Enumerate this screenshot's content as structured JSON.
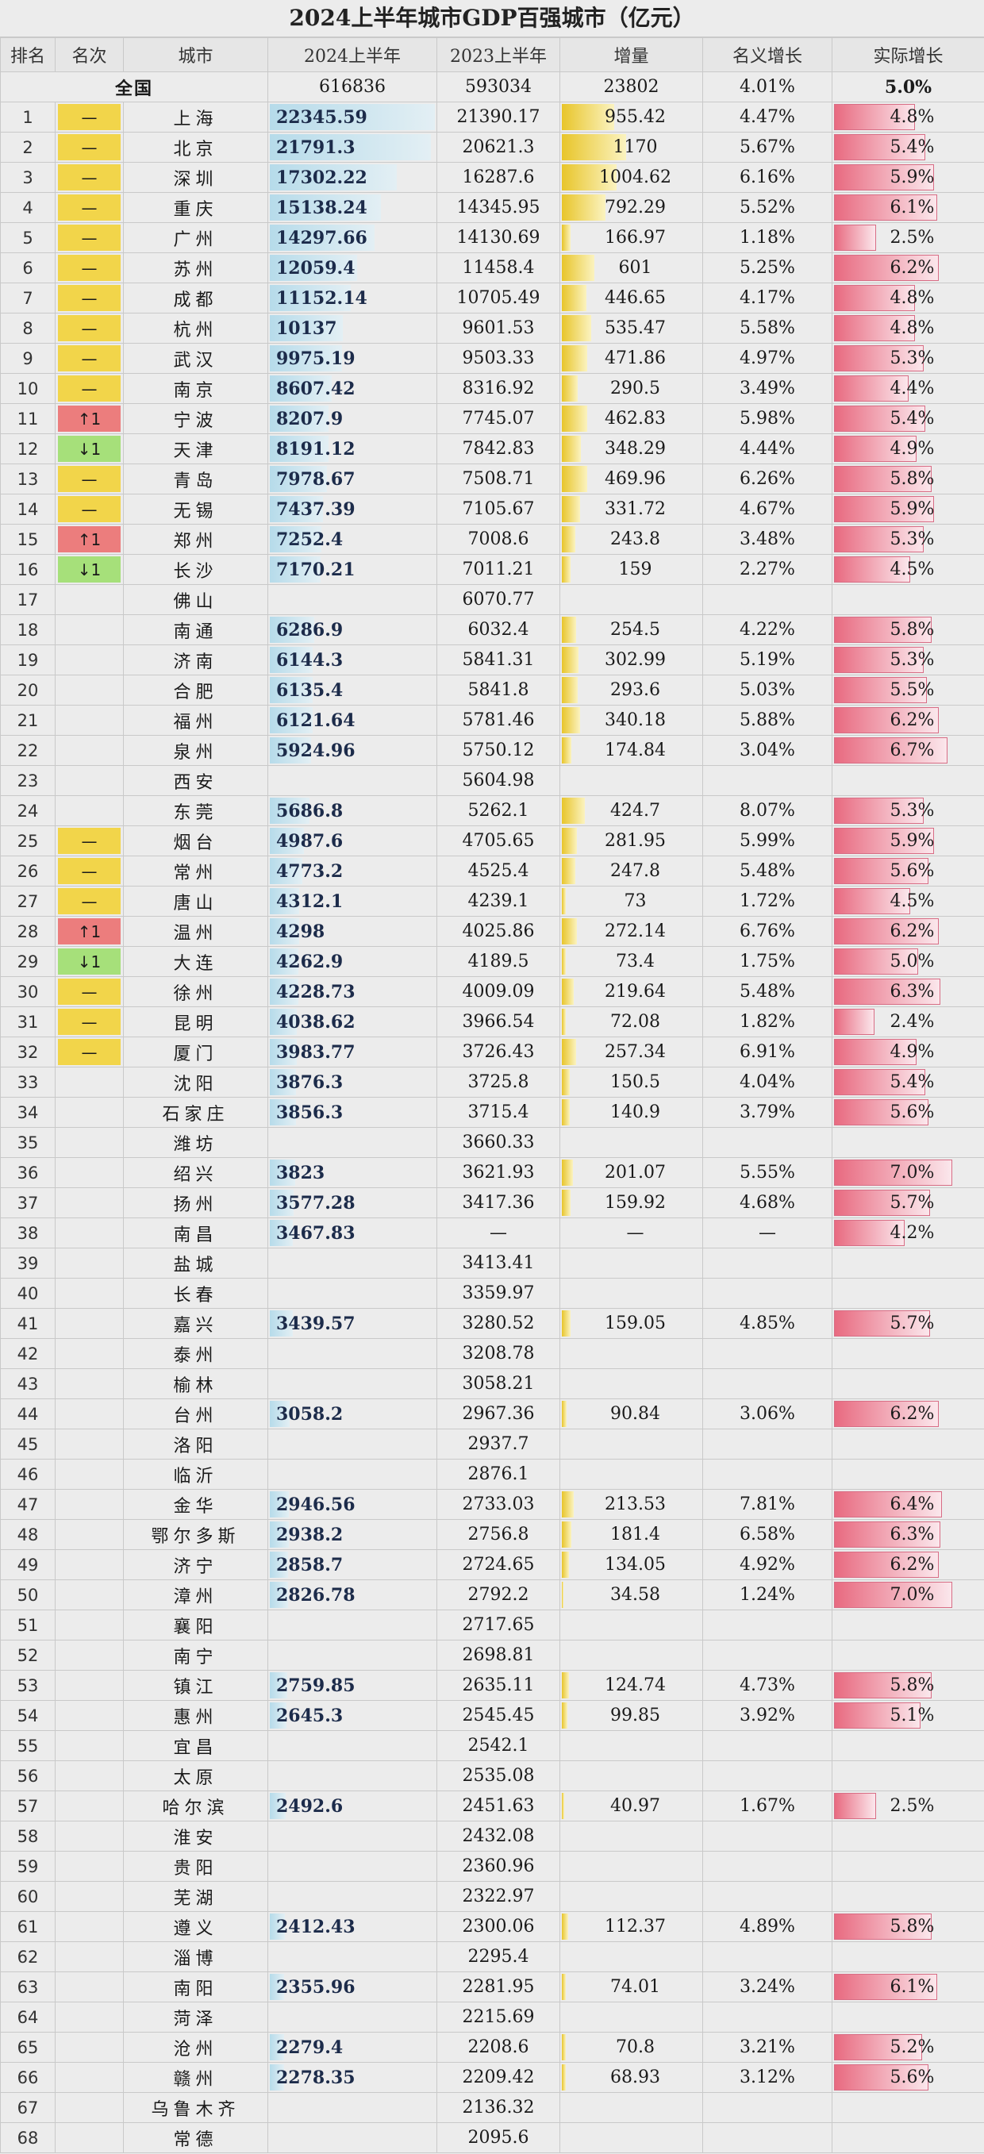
{
  "title": "2024上半年城市GDP百强城市（亿元）",
  "columns": [
    "排名",
    "名次",
    "城市",
    "2024上半年",
    "2023上半年",
    "增量",
    "名义增长",
    "实际增长"
  ],
  "national": {
    "label": "全国",
    "v2024": "616836",
    "v2023": "593034",
    "inc": "23802",
    "nominal": "4.01%",
    "real": "5.0%"
  },
  "scale": {
    "max2024": 22345.59,
    "maxInc": 1170,
    "maxReal": 7.0
  },
  "rows": [
    {
      "rank": "1",
      "change": "—",
      "ctype": "same",
      "city": "上海",
      "v2024": "22345.59",
      "v2023": "21390.17",
      "inc": "955.42",
      "nominal": "4.47%",
      "real": "4.8%"
    },
    {
      "rank": "2",
      "change": "—",
      "ctype": "same",
      "city": "北京",
      "v2024": "21791.3",
      "v2023": "20621.3",
      "inc": "1170",
      "nominal": "5.67%",
      "real": "5.4%"
    },
    {
      "rank": "3",
      "change": "—",
      "ctype": "same",
      "city": "深圳",
      "v2024": "17302.22",
      "v2023": "16287.6",
      "inc": "1004.62",
      "nominal": "6.16%",
      "real": "5.9%"
    },
    {
      "rank": "4",
      "change": "—",
      "ctype": "same",
      "city": "重庆",
      "v2024": "15138.24",
      "v2023": "14345.95",
      "inc": "792.29",
      "nominal": "5.52%",
      "real": "6.1%"
    },
    {
      "rank": "5",
      "change": "—",
      "ctype": "same",
      "city": "广州",
      "v2024": "14297.66",
      "v2023": "14130.69",
      "inc": "166.97",
      "nominal": "1.18%",
      "real": "2.5%"
    },
    {
      "rank": "6",
      "change": "—",
      "ctype": "same",
      "city": "苏州",
      "v2024": "12059.4",
      "v2023": "11458.4",
      "inc": "601",
      "nominal": "5.25%",
      "real": "6.2%"
    },
    {
      "rank": "7",
      "change": "—",
      "ctype": "same",
      "city": "成都",
      "v2024": "11152.14",
      "v2023": "10705.49",
      "inc": "446.65",
      "nominal": "4.17%",
      "real": "4.8%"
    },
    {
      "rank": "8",
      "change": "—",
      "ctype": "same",
      "city": "杭州",
      "v2024": "10137",
      "v2023": "9601.53",
      "inc": "535.47",
      "nominal": "5.58%",
      "real": "4.8%"
    },
    {
      "rank": "9",
      "change": "—",
      "ctype": "same",
      "city": "武汉",
      "v2024": "9975.19",
      "v2023": "9503.33",
      "inc": "471.86",
      "nominal": "4.97%",
      "real": "5.3%"
    },
    {
      "rank": "10",
      "change": "—",
      "ctype": "same",
      "city": "南京",
      "v2024": "8607.42",
      "v2023": "8316.92",
      "inc": "290.5",
      "nominal": "3.49%",
      "real": "4.4%"
    },
    {
      "rank": "11",
      "change": "↑1",
      "ctype": "up",
      "city": "宁波",
      "v2024": "8207.9",
      "v2023": "7745.07",
      "inc": "462.83",
      "nominal": "5.98%",
      "real": "5.4%"
    },
    {
      "rank": "12",
      "change": "↓1",
      "ctype": "down",
      "city": "天津",
      "v2024": "8191.12",
      "v2023": "7842.83",
      "inc": "348.29",
      "nominal": "4.44%",
      "real": "4.9%"
    },
    {
      "rank": "13",
      "change": "—",
      "ctype": "same",
      "city": "青岛",
      "v2024": "7978.67",
      "v2023": "7508.71",
      "inc": "469.96",
      "nominal": "6.26%",
      "real": "5.8%"
    },
    {
      "rank": "14",
      "change": "—",
      "ctype": "same",
      "city": "无锡",
      "v2024": "7437.39",
      "v2023": "7105.67",
      "inc": "331.72",
      "nominal": "4.67%",
      "real": "5.9%"
    },
    {
      "rank": "15",
      "change": "↑1",
      "ctype": "up",
      "city": "郑州",
      "v2024": "7252.4",
      "v2023": "7008.6",
      "inc": "243.8",
      "nominal": "3.48%",
      "real": "5.3%"
    },
    {
      "rank": "16",
      "change": "↓1",
      "ctype": "down",
      "city": "长沙",
      "v2024": "7170.21",
      "v2023": "7011.21",
      "inc": "159",
      "nominal": "2.27%",
      "real": "4.5%"
    },
    {
      "rank": "17",
      "change": "",
      "ctype": "",
      "city": "佛山",
      "v2024": "",
      "v2023": "6070.77",
      "inc": "",
      "nominal": "",
      "real": ""
    },
    {
      "rank": "18",
      "change": "",
      "ctype": "",
      "city": "南通",
      "v2024": "6286.9",
      "v2023": "6032.4",
      "inc": "254.5",
      "nominal": "4.22%",
      "real": "5.8%"
    },
    {
      "rank": "19",
      "change": "",
      "ctype": "",
      "city": "济南",
      "v2024": "6144.3",
      "v2023": "5841.31",
      "inc": "302.99",
      "nominal": "5.19%",
      "real": "5.3%"
    },
    {
      "rank": "20",
      "change": "",
      "ctype": "",
      "city": "合肥",
      "v2024": "6135.4",
      "v2023": "5841.8",
      "inc": "293.6",
      "nominal": "5.03%",
      "real": "5.5%"
    },
    {
      "rank": "21",
      "change": "",
      "ctype": "",
      "city": "福州",
      "v2024": "6121.64",
      "v2023": "5781.46",
      "inc": "340.18",
      "nominal": "5.88%",
      "real": "6.2%"
    },
    {
      "rank": "22",
      "change": "",
      "ctype": "",
      "city": "泉州",
      "v2024": "5924.96",
      "v2023": "5750.12",
      "inc": "174.84",
      "nominal": "3.04%",
      "real": "6.7%"
    },
    {
      "rank": "23",
      "change": "",
      "ctype": "",
      "city": "西安",
      "v2024": "",
      "v2023": "5604.98",
      "inc": "",
      "nominal": "",
      "real": ""
    },
    {
      "rank": "24",
      "change": "",
      "ctype": "",
      "city": "东莞",
      "v2024": "5686.8",
      "v2023": "5262.1",
      "inc": "424.7",
      "nominal": "8.07%",
      "real": "5.3%"
    },
    {
      "rank": "25",
      "change": "—",
      "ctype": "same",
      "city": "烟台",
      "v2024": "4987.6",
      "v2023": "4705.65",
      "inc": "281.95",
      "nominal": "5.99%",
      "real": "5.9%"
    },
    {
      "rank": "26",
      "change": "—",
      "ctype": "same",
      "city": "常州",
      "v2024": "4773.2",
      "v2023": "4525.4",
      "inc": "247.8",
      "nominal": "5.48%",
      "real": "5.6%"
    },
    {
      "rank": "27",
      "change": "—",
      "ctype": "same",
      "city": "唐山",
      "v2024": "4312.1",
      "v2023": "4239.1",
      "inc": "73",
      "nominal": "1.72%",
      "real": "4.5%"
    },
    {
      "rank": "28",
      "change": "↑1",
      "ctype": "up",
      "city": "温州",
      "v2024": "4298",
      "v2023": "4025.86",
      "inc": "272.14",
      "nominal": "6.76%",
      "real": "6.2%"
    },
    {
      "rank": "29",
      "change": "↓1",
      "ctype": "down",
      "city": "大连",
      "v2024": "4262.9",
      "v2023": "4189.5",
      "inc": "73.4",
      "nominal": "1.75%",
      "real": "5.0%"
    },
    {
      "rank": "30",
      "change": "—",
      "ctype": "same",
      "city": "徐州",
      "v2024": "4228.73",
      "v2023": "4009.09",
      "inc": "219.64",
      "nominal": "5.48%",
      "real": "6.3%"
    },
    {
      "rank": "31",
      "change": "—",
      "ctype": "same",
      "city": "昆明",
      "v2024": "4038.62",
      "v2023": "3966.54",
      "inc": "72.08",
      "nominal": "1.82%",
      "real": "2.4%"
    },
    {
      "rank": "32",
      "change": "—",
      "ctype": "same",
      "city": "厦门",
      "v2024": "3983.77",
      "v2023": "3726.43",
      "inc": "257.34",
      "nominal": "6.91%",
      "real": "4.9%"
    },
    {
      "rank": "33",
      "change": "",
      "ctype": "",
      "city": "沈阳",
      "v2024": "3876.3",
      "v2023": "3725.8",
      "inc": "150.5",
      "nominal": "4.04%",
      "real": "5.4%"
    },
    {
      "rank": "34",
      "change": "",
      "ctype": "",
      "city": "石家庄",
      "v2024": "3856.3",
      "v2023": "3715.4",
      "inc": "140.9",
      "nominal": "3.79%",
      "real": "5.6%"
    },
    {
      "rank": "35",
      "change": "",
      "ctype": "",
      "city": "潍坊",
      "v2024": "",
      "v2023": "3660.33",
      "inc": "",
      "nominal": "",
      "real": ""
    },
    {
      "rank": "36",
      "change": "",
      "ctype": "",
      "city": "绍兴",
      "v2024": "3823",
      "v2023": "3621.93",
      "inc": "201.07",
      "nominal": "5.55%",
      "real": "7.0%"
    },
    {
      "rank": "37",
      "change": "",
      "ctype": "",
      "city": "扬州",
      "v2024": "3577.28",
      "v2023": "3417.36",
      "inc": "159.92",
      "nominal": "4.68%",
      "real": "5.7%"
    },
    {
      "rank": "38",
      "change": "",
      "ctype": "",
      "city": "南昌",
      "v2024": "3467.83",
      "v2023": "—",
      "inc": "—",
      "nominal": "—",
      "real": "4.2%"
    },
    {
      "rank": "39",
      "change": "",
      "ctype": "",
      "city": "盐城",
      "v2024": "",
      "v2023": "3413.41",
      "inc": "",
      "nominal": "",
      "real": ""
    },
    {
      "rank": "40",
      "change": "",
      "ctype": "",
      "city": "长春",
      "v2024": "",
      "v2023": "3359.97",
      "inc": "",
      "nominal": "",
      "real": ""
    },
    {
      "rank": "41",
      "change": "",
      "ctype": "",
      "city": "嘉兴",
      "v2024": "3439.57",
      "v2023": "3280.52",
      "inc": "159.05",
      "nominal": "4.85%",
      "real": "5.7%"
    },
    {
      "rank": "42",
      "change": "",
      "ctype": "",
      "city": "泰州",
      "v2024": "",
      "v2023": "3208.78",
      "inc": "",
      "nominal": "",
      "real": ""
    },
    {
      "rank": "43",
      "change": "",
      "ctype": "",
      "city": "榆林",
      "v2024": "",
      "v2023": "3058.21",
      "inc": "",
      "nominal": "",
      "real": ""
    },
    {
      "rank": "44",
      "change": "",
      "ctype": "",
      "city": "台州",
      "v2024": "3058.2",
      "v2023": "2967.36",
      "inc": "90.84",
      "nominal": "3.06%",
      "real": "6.2%"
    },
    {
      "rank": "45",
      "change": "",
      "ctype": "",
      "city": "洛阳",
      "v2024": "",
      "v2023": "2937.7",
      "inc": "",
      "nominal": "",
      "real": ""
    },
    {
      "rank": "46",
      "change": "",
      "ctype": "",
      "city": "临沂",
      "v2024": "",
      "v2023": "2876.1",
      "inc": "",
      "nominal": "",
      "real": ""
    },
    {
      "rank": "47",
      "change": "",
      "ctype": "",
      "city": "金华",
      "v2024": "2946.56",
      "v2023": "2733.03",
      "inc": "213.53",
      "nominal": "7.81%",
      "real": "6.4%"
    },
    {
      "rank": "48",
      "change": "",
      "ctype": "",
      "city": "鄂尔多斯",
      "v2024": "2938.2",
      "v2023": "2756.8",
      "inc": "181.4",
      "nominal": "6.58%",
      "real": "6.3%"
    },
    {
      "rank": "49",
      "change": "",
      "ctype": "",
      "city": "济宁",
      "v2024": "2858.7",
      "v2023": "2724.65",
      "inc": "134.05",
      "nominal": "4.92%",
      "real": "6.2%"
    },
    {
      "rank": "50",
      "change": "",
      "ctype": "",
      "city": "漳州",
      "v2024": "2826.78",
      "v2023": "2792.2",
      "inc": "34.58",
      "nominal": "1.24%",
      "real": "7.0%"
    },
    {
      "rank": "51",
      "change": "",
      "ctype": "",
      "city": "襄阳",
      "v2024": "",
      "v2023": "2717.65",
      "inc": "",
      "nominal": "",
      "real": ""
    },
    {
      "rank": "52",
      "change": "",
      "ctype": "",
      "city": "南宁",
      "v2024": "",
      "v2023": "2698.81",
      "inc": "",
      "nominal": "",
      "real": ""
    },
    {
      "rank": "53",
      "change": "",
      "ctype": "",
      "city": "镇江",
      "v2024": "2759.85",
      "v2023": "2635.11",
      "inc": "124.74",
      "nominal": "4.73%",
      "real": "5.8%"
    },
    {
      "rank": "54",
      "change": "",
      "ctype": "",
      "city": "惠州",
      "v2024": "2645.3",
      "v2023": "2545.45",
      "inc": "99.85",
      "nominal": "3.92%",
      "real": "5.1%"
    },
    {
      "rank": "55",
      "change": "",
      "ctype": "",
      "city": "宜昌",
      "v2024": "",
      "v2023": "2542.1",
      "inc": "",
      "nominal": "",
      "real": ""
    },
    {
      "rank": "56",
      "change": "",
      "ctype": "",
      "city": "太原",
      "v2024": "",
      "v2023": "2535.08",
      "inc": "",
      "nominal": "",
      "real": ""
    },
    {
      "rank": "57",
      "change": "",
      "ctype": "",
      "city": "哈尔滨",
      "v2024": "2492.6",
      "v2023": "2451.63",
      "inc": "40.97",
      "nominal": "1.67%",
      "real": "2.5%"
    },
    {
      "rank": "58",
      "change": "",
      "ctype": "",
      "city": "淮安",
      "v2024": "",
      "v2023": "2432.08",
      "inc": "",
      "nominal": "",
      "real": ""
    },
    {
      "rank": "59",
      "change": "",
      "ctype": "",
      "city": "贵阳",
      "v2024": "",
      "v2023": "2360.96",
      "inc": "",
      "nominal": "",
      "real": ""
    },
    {
      "rank": "60",
      "change": "",
      "ctype": "",
      "city": "芜湖",
      "v2024": "",
      "v2023": "2322.97",
      "inc": "",
      "nominal": "",
      "real": ""
    },
    {
      "rank": "61",
      "change": "",
      "ctype": "",
      "city": "遵义",
      "v2024": "2412.43",
      "v2023": "2300.06",
      "inc": "112.37",
      "nominal": "4.89%",
      "real": "5.8%"
    },
    {
      "rank": "62",
      "change": "",
      "ctype": "",
      "city": "淄博",
      "v2024": "",
      "v2023": "2295.4",
      "inc": "",
      "nominal": "",
      "real": ""
    },
    {
      "rank": "63",
      "change": "",
      "ctype": "",
      "city": "南阳",
      "v2024": "2355.96",
      "v2023": "2281.95",
      "inc": "74.01",
      "nominal": "3.24%",
      "real": "6.1%"
    },
    {
      "rank": "64",
      "change": "",
      "ctype": "",
      "city": "菏泽",
      "v2024": "",
      "v2023": "2215.69",
      "inc": "",
      "nominal": "",
      "real": ""
    },
    {
      "rank": "65",
      "change": "",
      "ctype": "",
      "city": "沧州",
      "v2024": "2279.4",
      "v2023": "2208.6",
      "inc": "70.8",
      "nominal": "3.21%",
      "real": "5.2%"
    },
    {
      "rank": "66",
      "change": "",
      "ctype": "",
      "city": "赣州",
      "v2024": "2278.35",
      "v2023": "2209.42",
      "inc": "68.93",
      "nominal": "3.12%",
      "real": "5.6%"
    },
    {
      "rank": "67",
      "change": "",
      "ctype": "",
      "city": "乌鲁木齐",
      "v2024": "",
      "v2023": "2136.32",
      "inc": "",
      "nominal": "",
      "real": ""
    },
    {
      "rank": "68",
      "change": "",
      "ctype": "",
      "city": "常德",
      "v2024": "",
      "v2023": "2095.6",
      "inc": "",
      "nominal": "",
      "real": ""
    }
  ]
}
